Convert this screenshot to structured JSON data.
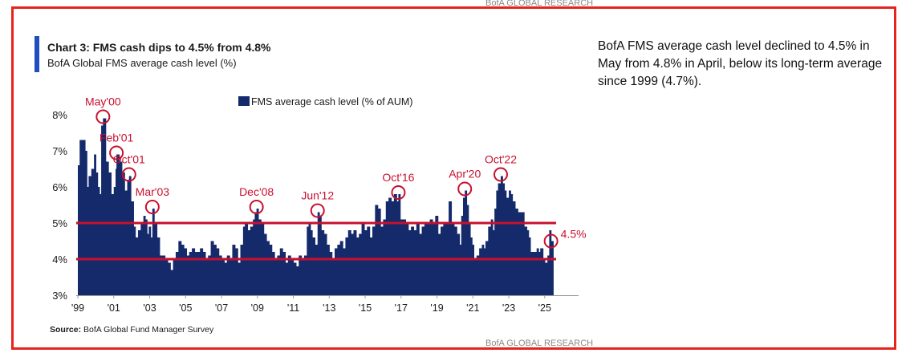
{
  "brand_top": "BofA GLOBAL RESEARCH",
  "brand_bottom": "BofA GLOBAL RESEARCH",
  "title": "Chart 3: FMS cash dips to 4.5% from 4.8%",
  "subtitle": "BofA Global FMS average cash level (%)",
  "source_label": "Source:",
  "source_text": "BofA Global Fund Manager Survey",
  "commentary": "BofA FMS average cash level declined to 4.5% in May from 4.8% in April, below its long-term average since 1999 (4.7%).",
  "colors": {
    "bars": "#142a6b",
    "lines": "#c8102e",
    "annotations": "#c8102e",
    "frame": "#e8231b",
    "accent": "#1f4fbf"
  },
  "chart_data": {
    "type": "bar",
    "title": "Chart 3: FMS cash dips to 4.5% from 4.8%",
    "subtitle": "BofA Global FMS average cash level (%)",
    "legend": "FMS average cash level (% of AUM)",
    "legend_position": "top",
    "ylim": [
      3,
      8
    ],
    "yticks": [
      "3%",
      "4%",
      "5%",
      "6%",
      "7%",
      "8%"
    ],
    "xticks": [
      "'99",
      "'01",
      "'03",
      "'05",
      "'07",
      "'09",
      "'11",
      "'13",
      "'15",
      "'17",
      "'19",
      "'21",
      "'23",
      "'25"
    ],
    "xticks_years": [
      1999,
      2001,
      2003,
      2005,
      2007,
      2009,
      2011,
      2013,
      2015,
      2017,
      2019,
      2021,
      2023,
      2025
    ],
    "grid": false,
    "reference_lines": [
      4.0,
      5.0
    ],
    "series": [
      {
        "name": "FMS average cash level (% of AUM)",
        "points": [
          [
            1999.0,
            6.6
          ],
          [
            1999.1,
            7.3
          ],
          [
            1999.25,
            7.3
          ],
          [
            1999.4,
            7.0
          ],
          [
            1999.5,
            6.0
          ],
          [
            1999.6,
            6.3
          ],
          [
            1999.75,
            6.5
          ],
          [
            1999.9,
            6.9
          ],
          [
            2000.0,
            6.4
          ],
          [
            2000.1,
            6.0
          ],
          [
            2000.2,
            5.8
          ],
          [
            2000.3,
            7.7
          ],
          [
            2000.4,
            7.9
          ],
          [
            2000.55,
            6.7
          ],
          [
            2000.7,
            6.4
          ],
          [
            2000.85,
            5.8
          ],
          [
            2001.0,
            6.0
          ],
          [
            2001.1,
            6.5
          ],
          [
            2001.15,
            6.9
          ],
          [
            2001.3,
            6.7
          ],
          [
            2001.45,
            6.4
          ],
          [
            2001.6,
            5.9
          ],
          [
            2001.75,
            6.2
          ],
          [
            2001.85,
            6.3
          ],
          [
            2001.95,
            5.6
          ],
          [
            2002.1,
            4.9
          ],
          [
            2002.2,
            4.6
          ],
          [
            2002.35,
            4.8
          ],
          [
            2002.5,
            5.0
          ],
          [
            2002.65,
            5.2
          ],
          [
            2002.75,
            5.1
          ],
          [
            2002.85,
            4.7
          ],
          [
            2002.95,
            4.9
          ],
          [
            2003.05,
            4.6
          ],
          [
            2003.15,
            5.4
          ],
          [
            2003.25,
            5.0
          ],
          [
            2003.4,
            4.6
          ],
          [
            2003.55,
            4.1
          ],
          [
            2003.7,
            4.1
          ],
          [
            2003.85,
            4.0
          ],
          [
            2004.0,
            3.9
          ],
          [
            2004.15,
            3.7
          ],
          [
            2004.3,
            4.0
          ],
          [
            2004.45,
            4.2
          ],
          [
            2004.6,
            4.5
          ],
          [
            2004.75,
            4.4
          ],
          [
            2004.9,
            4.3
          ],
          [
            2005.05,
            4.1
          ],
          [
            2005.2,
            4.2
          ],
          [
            2005.35,
            4.3
          ],
          [
            2005.5,
            4.2
          ],
          [
            2005.65,
            4.2
          ],
          [
            2005.8,
            4.3
          ],
          [
            2005.95,
            4.2
          ],
          [
            2006.1,
            4.0
          ],
          [
            2006.25,
            4.1
          ],
          [
            2006.4,
            4.5
          ],
          [
            2006.55,
            4.4
          ],
          [
            2006.7,
            4.3
          ],
          [
            2006.85,
            4.1
          ],
          [
            2007.0,
            4.0
          ],
          [
            2007.15,
            3.9
          ],
          [
            2007.3,
            4.1
          ],
          [
            2007.45,
            4.0
          ],
          [
            2007.6,
            4.4
          ],
          [
            2007.75,
            4.3
          ],
          [
            2007.9,
            3.9
          ],
          [
            2008.05,
            4.4
          ],
          [
            2008.2,
            4.9
          ],
          [
            2008.3,
            5.0
          ],
          [
            2008.45,
            4.8
          ],
          [
            2008.6,
            4.9
          ],
          [
            2008.75,
            5.1
          ],
          [
            2008.85,
            5.3
          ],
          [
            2008.95,
            5.4
          ],
          [
            2009.05,
            5.1
          ],
          [
            2009.2,
            5.0
          ],
          [
            2009.35,
            4.7
          ],
          [
            2009.5,
            4.5
          ],
          [
            2009.65,
            4.4
          ],
          [
            2009.8,
            4.2
          ],
          [
            2009.95,
            4.0
          ],
          [
            2010.1,
            4.1
          ],
          [
            2010.25,
            4.3
          ],
          [
            2010.4,
            4.2
          ],
          [
            2010.55,
            3.9
          ],
          [
            2010.7,
            4.1
          ],
          [
            2010.85,
            4.0
          ],
          [
            2011.0,
            3.9
          ],
          [
            2011.15,
            3.8
          ],
          [
            2011.3,
            4.1
          ],
          [
            2011.45,
            4.0
          ],
          [
            2011.6,
            4.1
          ],
          [
            2011.75,
            4.9
          ],
          [
            2011.85,
            5.0
          ],
          [
            2011.95,
            4.8
          ],
          [
            2012.05,
            4.6
          ],
          [
            2012.2,
            4.4
          ],
          [
            2012.35,
            5.3
          ],
          [
            2012.45,
            5.2
          ],
          [
            2012.55,
            4.8
          ],
          [
            2012.7,
            4.7
          ],
          [
            2012.85,
            4.4
          ],
          [
            2013.0,
            4.2
          ],
          [
            2013.15,
            4.0
          ],
          [
            2013.3,
            4.3
          ],
          [
            2013.45,
            4.4
          ],
          [
            2013.6,
            4.5
          ],
          [
            2013.75,
            4.3
          ],
          [
            2013.9,
            4.6
          ],
          [
            2014.05,
            4.8
          ],
          [
            2014.2,
            4.7
          ],
          [
            2014.35,
            4.8
          ],
          [
            2014.5,
            4.6
          ],
          [
            2014.65,
            4.7
          ],
          [
            2014.8,
            5.0
          ],
          [
            2014.95,
            4.8
          ],
          [
            2015.1,
            4.9
          ],
          [
            2015.25,
            4.6
          ],
          [
            2015.4,
            4.9
          ],
          [
            2015.55,
            5.5
          ],
          [
            2015.7,
            5.4
          ],
          [
            2015.85,
            4.9
          ],
          [
            2016.0,
            5.1
          ],
          [
            2016.15,
            5.6
          ],
          [
            2016.3,
            5.7
          ],
          [
            2016.45,
            5.6
          ],
          [
            2016.6,
            5.8
          ],
          [
            2016.75,
            5.6
          ],
          [
            2016.85,
            5.8
          ],
          [
            2016.95,
            5.1
          ],
          [
            2017.1,
            5.1
          ],
          [
            2017.25,
            5.0
          ],
          [
            2017.4,
            4.8
          ],
          [
            2017.55,
            4.9
          ],
          [
            2017.7,
            4.8
          ],
          [
            2017.85,
            5.0
          ],
          [
            2018.0,
            4.7
          ],
          [
            2018.15,
            4.9
          ],
          [
            2018.3,
            5.0
          ],
          [
            2018.45,
            5.0
          ],
          [
            2018.6,
            5.1
          ],
          [
            2018.75,
            5.0
          ],
          [
            2018.9,
            5.2
          ],
          [
            2019.05,
            4.7
          ],
          [
            2019.2,
            4.9
          ],
          [
            2019.35,
            5.0
          ],
          [
            2019.5,
            5.0
          ],
          [
            2019.65,
            5.6
          ],
          [
            2019.8,
            5.0
          ],
          [
            2019.95,
            4.9
          ],
          [
            2020.1,
            4.7
          ],
          [
            2020.25,
            4.4
          ],
          [
            2020.35,
            5.2
          ],
          [
            2020.45,
            5.7
          ],
          [
            2020.55,
            5.9
          ],
          [
            2020.65,
            5.5
          ],
          [
            2020.75,
            5.0
          ],
          [
            2020.85,
            4.6
          ],
          [
            2020.95,
            4.4
          ],
          [
            2021.05,
            4.0
          ],
          [
            2021.2,
            4.1
          ],
          [
            2021.35,
            4.3
          ],
          [
            2021.5,
            4.4
          ],
          [
            2021.6,
            4.3
          ],
          [
            2021.7,
            4.5
          ],
          [
            2021.85,
            4.9
          ],
          [
            2022.0,
            5.1
          ],
          [
            2022.1,
            4.8
          ],
          [
            2022.2,
            5.4
          ],
          [
            2022.3,
            5.9
          ],
          [
            2022.4,
            6.1
          ],
          [
            2022.55,
            6.3
          ],
          [
            2022.65,
            6.1
          ],
          [
            2022.75,
            5.9
          ],
          [
            2022.85,
            5.7
          ],
          [
            2023.0,
            5.9
          ],
          [
            2023.1,
            5.8
          ],
          [
            2023.2,
            5.6
          ],
          [
            2023.35,
            5.4
          ],
          [
            2023.5,
            5.3
          ],
          [
            2023.6,
            5.3
          ],
          [
            2023.7,
            5.3
          ],
          [
            2023.85,
            4.9
          ],
          [
            2024.0,
            4.8
          ],
          [
            2024.1,
            4.6
          ],
          [
            2024.2,
            4.2
          ],
          [
            2024.35,
            4.2
          ],
          [
            2024.45,
            4.2
          ],
          [
            2024.55,
            4.3
          ],
          [
            2024.65,
            4.2
          ],
          [
            2024.75,
            4.3
          ],
          [
            2024.9,
            4.0
          ],
          [
            2025.0,
            3.9
          ],
          [
            2025.15,
            4.1
          ],
          [
            2025.25,
            4.8
          ],
          [
            2025.35,
            4.5
          ]
        ]
      }
    ],
    "annotations": [
      {
        "label": "May'00",
        "x": 2000.4,
        "y": 7.9
      },
      {
        "label": "Feb'01",
        "x": 2001.15,
        "y": 6.9
      },
      {
        "label": "Oct'01",
        "x": 2001.85,
        "y": 6.3
      },
      {
        "label": "Mar'03",
        "x": 2003.15,
        "y": 5.4
      },
      {
        "label": "Dec'08",
        "x": 2008.95,
        "y": 5.4
      },
      {
        "label": "Jun'12",
        "x": 2012.35,
        "y": 5.3
      },
      {
        "label": "Oct'16",
        "x": 2016.85,
        "y": 5.8
      },
      {
        "label": "Apr'20",
        "x": 2020.55,
        "y": 5.9
      },
      {
        "label": "Oct'22",
        "x": 2022.55,
        "y": 6.3
      },
      {
        "label": "4.5%",
        "x": 2025.35,
        "y": 4.5
      }
    ]
  }
}
